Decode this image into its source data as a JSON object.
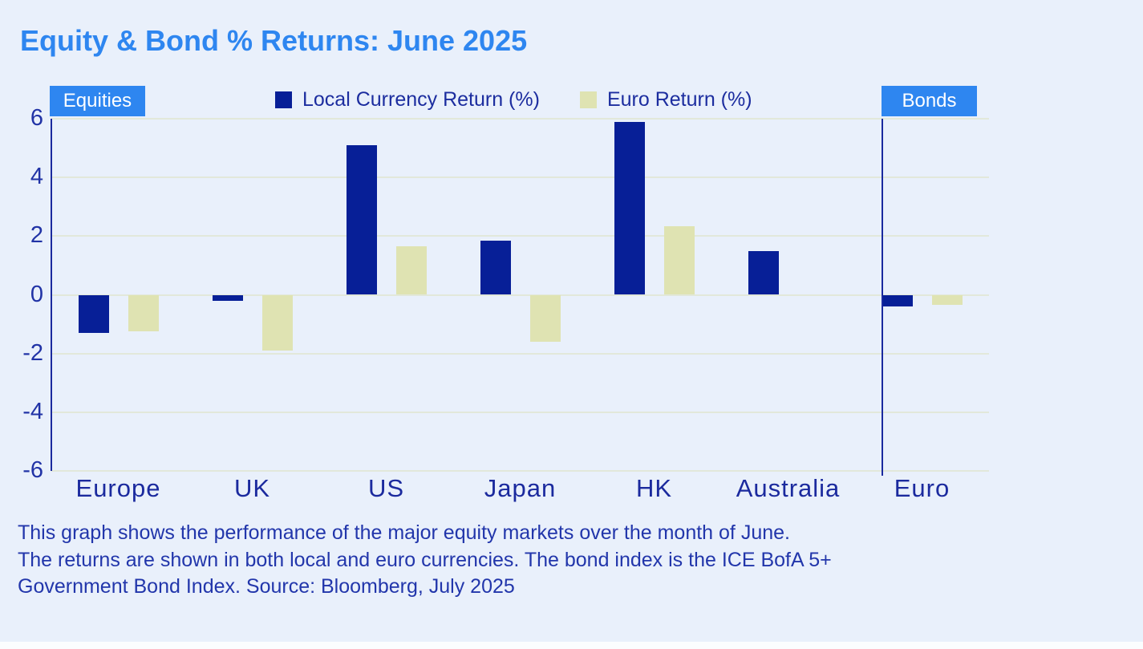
{
  "title": "Equity & Bond % Returns: June 2025",
  "section_labels": {
    "equities": "Equities",
    "bonds": "Bonds"
  },
  "legend": [
    {
      "label": "Local Currency Return (%)",
      "color": "#071f97"
    },
    {
      "label": "Euro Return (%)",
      "color": "#dfe3b2"
    }
  ],
  "caption": {
    "lines": [
      "This graph shows the performance of the major equity markets over the month of June.",
      "The returns are shown in both local and euro currencies. The bond index is the ICE BofA 5+",
      "Government Bond Index. Source: Bloomberg, July 2025"
    ]
  },
  "colors": {
    "background": "#e9f0fb",
    "accent_blue": "#2e86f0",
    "navy_series": "#071f97",
    "cream_series": "#dfe3b2",
    "text_navy": "#1b2a9e",
    "gridline": "#e2e8da"
  },
  "chart_data": {
    "type": "bar",
    "title": "Equity & Bond % Returns: June 2025",
    "categories": [
      "Europe",
      "UK",
      "US",
      "Japan",
      "HK",
      "Australia",
      "Euro"
    ],
    "series": [
      {
        "name": "Local Currency Return (%)",
        "color": "#071f97",
        "values": [
          -1.3,
          -0.2,
          5.1,
          1.85,
          5.9,
          1.5,
          -0.4
        ]
      },
      {
        "name": "Euro Return (%)",
        "color": "#dfe3b2",
        "values": [
          -1.25,
          -1.9,
          1.65,
          -1.6,
          2.35,
          0,
          -0.35
        ]
      }
    ],
    "xlabel": "",
    "ylabel": "",
    "ylim": [
      -6,
      6
    ],
    "yticks": [
      6,
      4,
      2,
      0,
      -2,
      -4,
      -6
    ],
    "grid": true,
    "legend_position": "top",
    "sections": [
      {
        "label": "Equities",
        "categories": [
          "Europe",
          "UK",
          "US",
          "Japan",
          "HK",
          "Australia"
        ]
      },
      {
        "label": "Bonds",
        "categories": [
          "Euro"
        ]
      }
    ],
    "separator_after_category": "Australia"
  }
}
